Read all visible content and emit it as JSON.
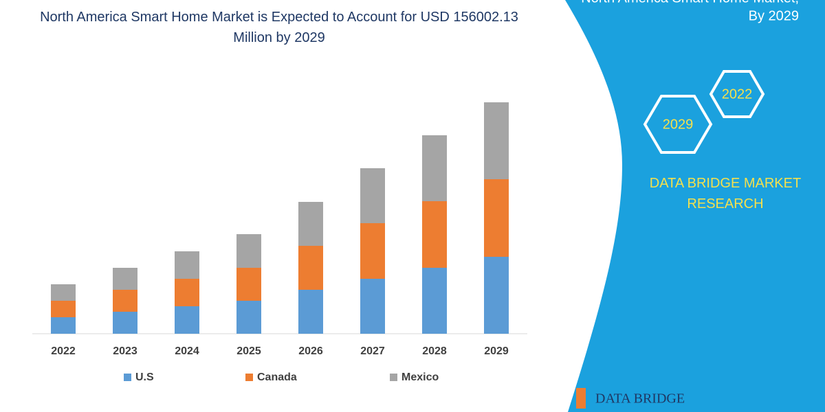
{
  "chart_data": {
    "type": "bar",
    "stacked": true,
    "title": "North America Smart Home Market is Expected to Account for USD 156002.13 Million by 2029",
    "categories": [
      "2022",
      "2023",
      "2024",
      "2025",
      "2026",
      "2027",
      "2028",
      "2029"
    ],
    "series": [
      {
        "name": "U.S",
        "color": "#5b9bd5",
        "values": [
          24,
          32,
          40,
          48,
          64,
          80,
          96,
          112
        ]
      },
      {
        "name": "Canada",
        "color": "#ed7d31",
        "values": [
          24,
          32,
          40,
          48,
          64,
          81,
          97,
          113
        ]
      },
      {
        "name": "Mexico",
        "color": "#a5a5a5",
        "values": [
          24,
          32,
          40,
          49,
          64,
          80,
          96,
          112
        ]
      }
    ],
    "ylim": [
      0,
      350
    ],
    "legend": "bottom"
  },
  "panel": {
    "heading": "North America Smart Home Market,",
    "subheading": "By 2029",
    "badges": [
      "2022",
      "2029"
    ],
    "brand": "DATA BRIDGE MARKET RESEARCH",
    "logo": "DATA BRIDGE"
  }
}
